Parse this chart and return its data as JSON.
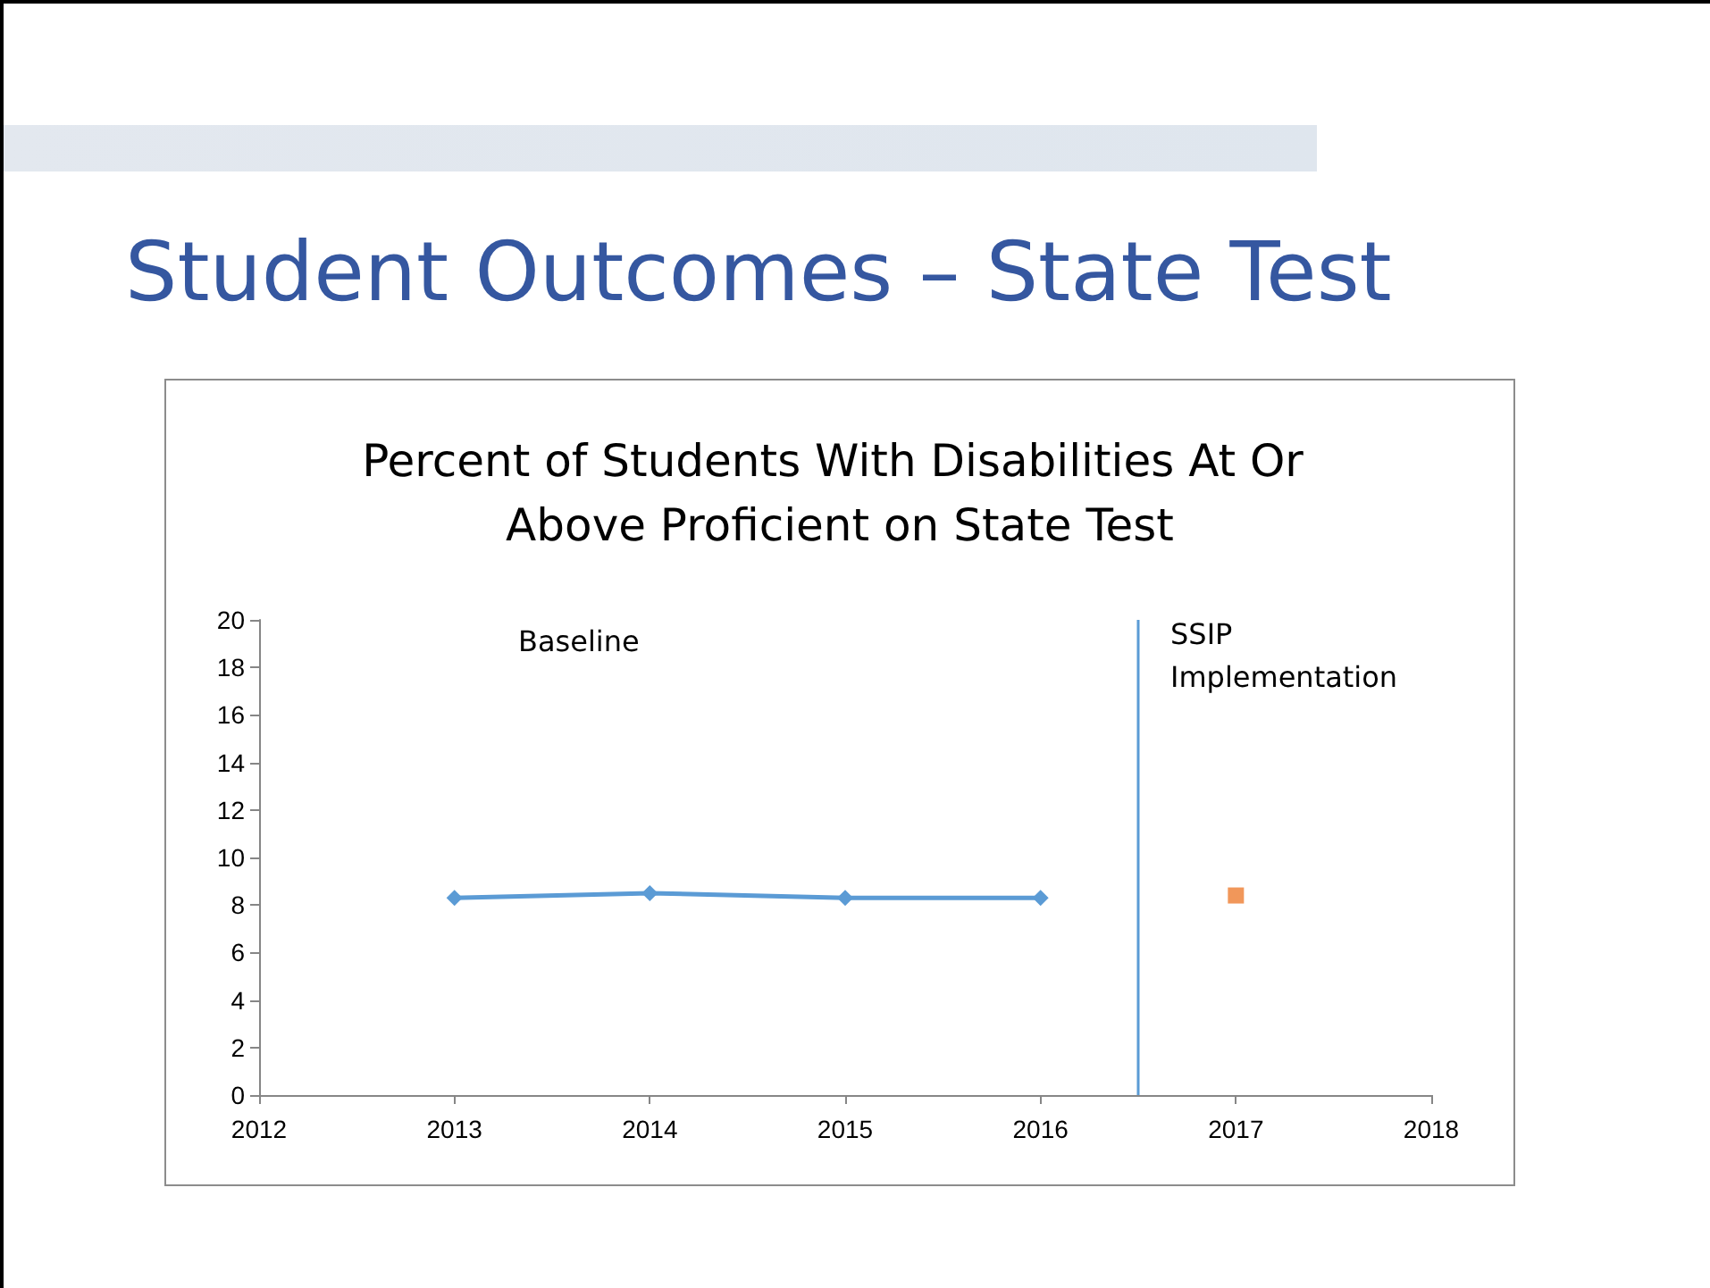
{
  "chart_data": {
    "type": "line",
    "title": "Student Outcomes – State Test",
    "subtitle": "Percent of Students With Disabilities At Or Above Proficient on State Test",
    "x": [
      2013,
      2014,
      2015,
      2016
    ],
    "series": [
      {
        "color": "#5b9bd5",
        "marker": "diamond",
        "values": [
          8.3,
          8.5,
          8.3,
          8.3
        ]
      },
      {
        "type": "scatter",
        "color": "#ed7d31",
        "marker": "square",
        "x": [
          2017
        ],
        "values": [
          8.4
        ]
      }
    ],
    "xlim": [
      2012,
      2018
    ],
    "xticks": [
      2012,
      2013,
      2014,
      2015,
      2016,
      2017,
      2018
    ],
    "ylim": [
      0,
      20
    ],
    "yticks": [
      0,
      2,
      4,
      6,
      8,
      10,
      12,
      14,
      16,
      18,
      20
    ],
    "grid": false,
    "ref_lines": [
      {
        "axis": "x",
        "value": 2016.5,
        "color": "#5b9bd5"
      }
    ],
    "annotations": [
      "Baseline",
      "SSIP Implementation"
    ]
  }
}
